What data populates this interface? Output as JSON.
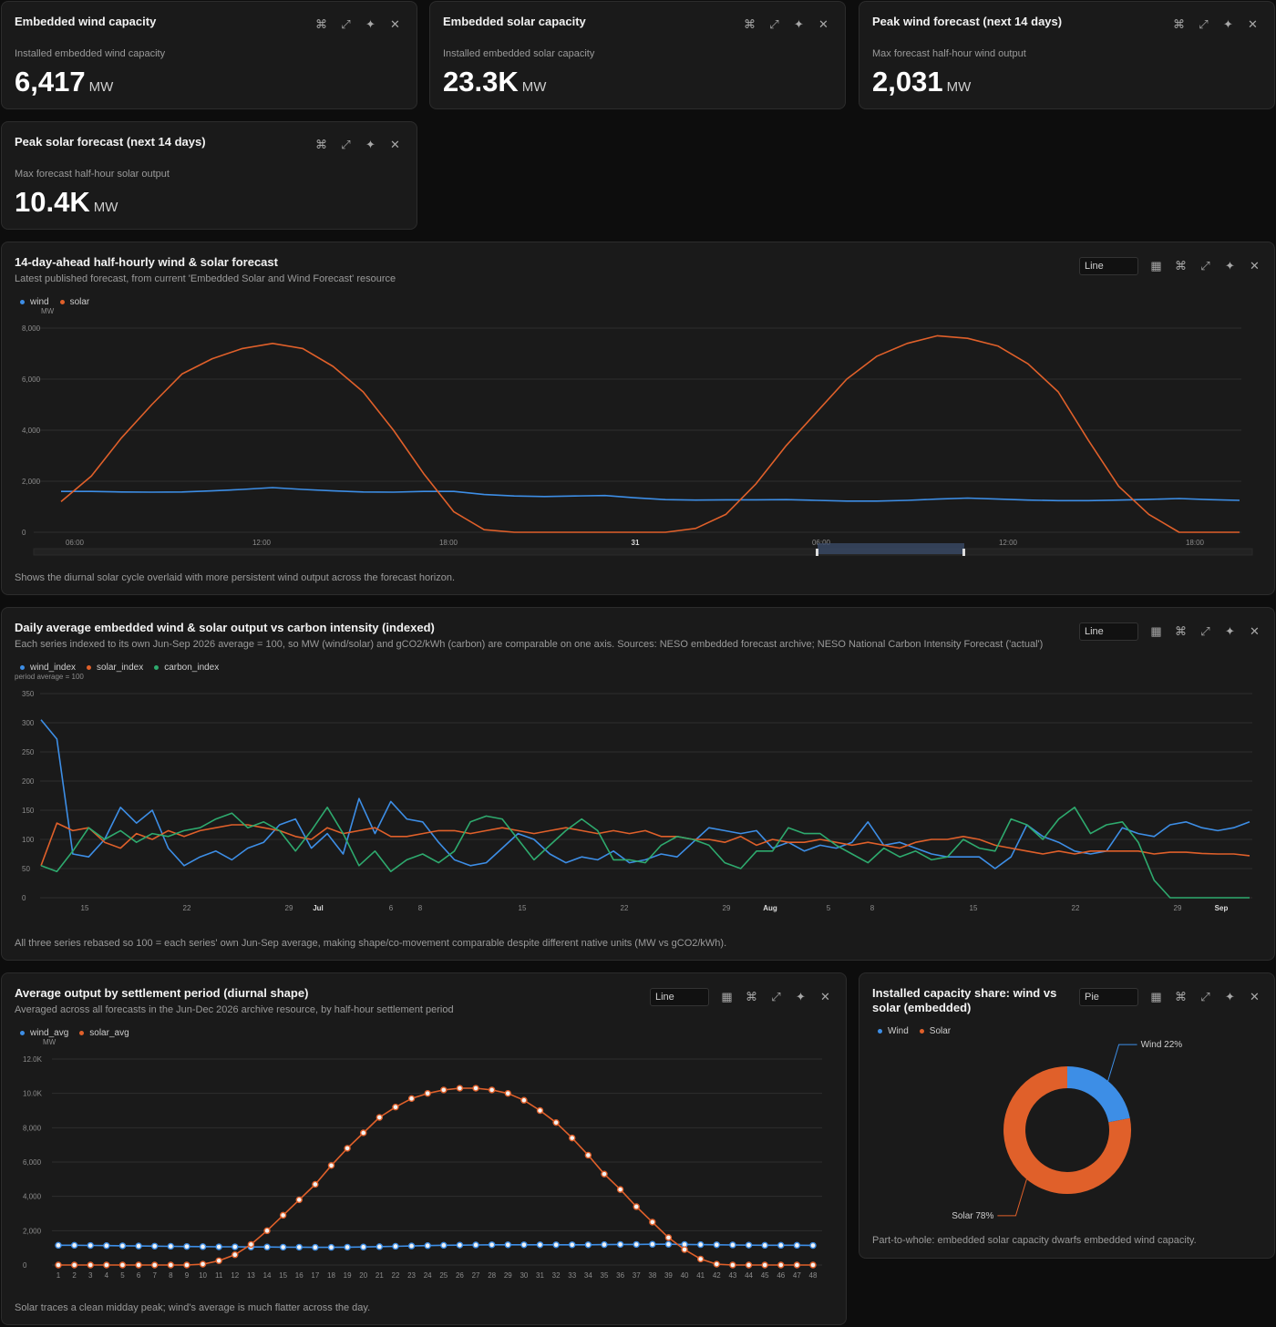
{
  "colors": {
    "wind": "#3d8ee6",
    "solar": "#e0602a",
    "carbon": "#2eaa6e",
    "grid": "#2e2e2e",
    "card": "#1a1a1a"
  },
  "icons": {
    "command": "command-icon",
    "expand": "expand-icon",
    "sparkle": "sparkle-icon",
    "close": "close-icon",
    "table": "table-icon"
  },
  "kpis": [
    {
      "title": "Embedded wind capacity",
      "label": "Installed embedded wind capacity",
      "value": "6,417",
      "unit": "MW"
    },
    {
      "title": "Embedded solar capacity",
      "label": "Installed embedded solar capacity",
      "value": "23.3K",
      "unit": "MW"
    },
    {
      "title": "Peak wind forecast (next 14 days)",
      "label": "Max forecast half-hour wind output",
      "value": "2,031",
      "unit": "MW"
    },
    {
      "title": "Peak solar forecast (next 14 days)",
      "label": "Max forecast half-hour solar output",
      "value": "10.4K",
      "unit": "MW"
    }
  ],
  "panels": {
    "forecast": {
      "title": "14-day-ahead half-hourly wind & solar forecast",
      "subtitle": "Latest published forecast, from current 'Embedded Solar and Wind Forecast' resource",
      "type_select": "Line",
      "footer": "Shows the diurnal solar cycle overlaid with more persistent wind output across the forecast horizon."
    },
    "daily": {
      "title": "Daily average embedded wind & solar output vs carbon intensity (indexed)",
      "subtitle": "Each series indexed to its own Jun-Sep 2026 average = 100, so MW (wind/solar) and gCO2/kWh (carbon) are comparable on one axis. Sources: NESO embedded forecast archive; NESO National Carbon Intensity Forecast ('actual')",
      "type_select": "Line",
      "footer": "All three series rebased so 100 = each series' own Jun-Sep average, making shape/co-movement comparable despite different native units (MW vs gCO2/kWh)."
    },
    "settlement": {
      "title": "Average output by settlement period (diurnal shape)",
      "subtitle": "Averaged across all forecasts in the Jun-Dec 2026 archive resource, by half-hour settlement period",
      "type_select": "Line",
      "footer": "Solar traces a clean midday peak; wind's average is much flatter across the day."
    },
    "share": {
      "title": "Installed capacity share: wind vs solar (embedded)",
      "type_select": "Pie",
      "footer": "Part-to-whole: embedded solar capacity dwarfs embedded wind capacity."
    }
  },
  "chart_data": [
    {
      "type": "line",
      "legend": [
        "wind",
        "solar"
      ],
      "ylabel": "MW",
      "ylim": [
        0,
        8000
      ],
      "yticks": [
        "0",
        "2,000",
        "4,000",
        "6,000",
        "8,000"
      ],
      "xticks": [
        "06:00",
        "12:00",
        "18:00",
        "31",
        "06:00",
        "12:00",
        "18:00"
      ],
      "x": [
        "05:30",
        "06:30",
        "07:30",
        "08:30",
        "09:30",
        "10:30",
        "11:30",
        "12:30",
        "13:30",
        "14:30",
        "15:30",
        "16:30",
        "17:30",
        "18:30",
        "19:30",
        "20:30",
        "21:30",
        "22:30",
        "23:30",
        "00:30",
        "01:30",
        "02:30",
        "03:30",
        "04:30",
        "05:30",
        "06:30",
        "07:30",
        "08:30",
        "09:30",
        "10:30",
        "11:30",
        "12:30",
        "13:30",
        "14:30",
        "15:30",
        "16:30",
        "17:30",
        "18:30",
        "19:30",
        "20:30"
      ],
      "series": [
        {
          "name": "wind",
          "values": [
            1600,
            1600,
            1580,
            1570,
            1580,
            1620,
            1680,
            1750,
            1680,
            1620,
            1580,
            1570,
            1600,
            1600,
            1480,
            1420,
            1400,
            1420,
            1440,
            1350,
            1280,
            1260,
            1270,
            1270,
            1280,
            1250,
            1220,
            1220,
            1250,
            1300,
            1340,
            1300,
            1260,
            1240,
            1240,
            1260,
            1290,
            1320,
            1280,
            1250
          ]
        },
        {
          "name": "solar",
          "values": [
            1200,
            2200,
            3700,
            5000,
            6200,
            6800,
            7200,
            7400,
            7200,
            6500,
            5500,
            4000,
            2300,
            800,
            100,
            0,
            0,
            0,
            0,
            0,
            0,
            150,
            700,
            1900,
            3400,
            4700,
            6000,
            6900,
            7400,
            7700,
            7600,
            7300,
            6600,
            5500,
            3600,
            1800,
            700,
            0,
            0,
            0
          ]
        }
      ]
    },
    {
      "type": "line",
      "legend": [
        "wind_index",
        "solar_index",
        "carbon_index"
      ],
      "ylabel": "period average = 100",
      "ylim": [
        0,
        350
      ],
      "yticks": [
        "0",
        "50",
        "100",
        "150",
        "200",
        "250",
        "300",
        "350"
      ],
      "xticks": [
        "15",
        "22",
        "29",
        "Jul",
        "6",
        "8",
        "15",
        "22",
        "29",
        "Aug",
        "5",
        "8",
        "15",
        "22",
        "29",
        "Sep"
      ],
      "x_start": "2026-06-08",
      "x_end": "2026-09-05",
      "series": [
        {
          "name": "wind_index",
          "values": [
            305,
            272,
            75,
            70,
            100,
            155,
            128,
            150,
            85,
            55,
            70,
            80,
            65,
            85,
            95,
            125,
            135,
            85,
            110,
            75,
            170,
            110,
            165,
            135,
            130,
            95,
            65,
            55,
            60,
            85,
            110,
            100,
            75,
            60,
            70,
            65,
            80,
            60,
            65,
            75,
            70,
            95,
            120,
            115,
            110,
            115,
            85,
            95,
            80,
            90,
            85,
            95,
            130,
            90,
            95,
            85,
            75,
            70,
            70,
            70,
            50,
            70,
            125,
            105,
            95,
            80,
            75,
            80,
            120,
            110,
            105,
            125,
            130,
            120,
            115,
            120,
            130
          ]
        },
        {
          "name": "solar_index",
          "values": [
            55,
            128,
            115,
            120,
            95,
            85,
            110,
            100,
            115,
            105,
            115,
            120,
            125,
            125,
            120,
            115,
            105,
            100,
            120,
            110,
            115,
            120,
            105,
            105,
            110,
            115,
            115,
            110,
            115,
            120,
            115,
            110,
            115,
            120,
            115,
            110,
            115,
            110,
            115,
            105,
            105,
            100,
            100,
            95,
            105,
            90,
            100,
            95,
            95,
            100,
            95,
            90,
            95,
            90,
            85,
            95,
            100,
            100,
            105,
            100,
            90,
            85,
            80,
            75,
            80,
            75,
            80,
            80,
            80,
            80,
            75,
            78,
            78,
            76,
            75,
            75,
            72
          ]
        },
        {
          "name": "carbon_index",
          "values": [
            55,
            45,
            80,
            120,
            100,
            115,
            95,
            110,
            105,
            115,
            120,
            135,
            145,
            120,
            130,
            115,
            80,
            115,
            155,
            110,
            55,
            80,
            45,
            65,
            75,
            60,
            80,
            130,
            140,
            135,
            100,
            65,
            90,
            115,
            135,
            115,
            65,
            65,
            60,
            90,
            105,
            100,
            90,
            60,
            50,
            80,
            80,
            120,
            110,
            110,
            90,
            75,
            60,
            85,
            70,
            80,
            65,
            70,
            100,
            85,
            80,
            135,
            125,
            100,
            135,
            155,
            110,
            125,
            130,
            95,
            30,
            0,
            0,
            0,
            0,
            0,
            0
          ]
        }
      ]
    },
    {
      "type": "line",
      "legend": [
        "wind_avg",
        "solar_avg"
      ],
      "ylabel": "MW",
      "ylim": [
        0,
        12000
      ],
      "yticks": [
        "0",
        "2,000",
        "4,000",
        "6,000",
        "8,000",
        "10.0K",
        "12.0K"
      ],
      "categories": [
        "1",
        "2",
        "3",
        "4",
        "5",
        "6",
        "7",
        "8",
        "9",
        "10",
        "11",
        "12",
        "13",
        "14",
        "15",
        "16",
        "17",
        "18",
        "19",
        "20",
        "21",
        "22",
        "23",
        "24",
        "25",
        "26",
        "27",
        "28",
        "29",
        "30",
        "31",
        "32",
        "33",
        "34",
        "35",
        "36",
        "37",
        "38",
        "39",
        "40",
        "41",
        "42",
        "43",
        "44",
        "45",
        "46",
        "47",
        "48"
      ],
      "series": [
        {
          "name": "wind_avg",
          "values": [
            1150,
            1150,
            1140,
            1130,
            1120,
            1110,
            1100,
            1090,
            1080,
            1070,
            1060,
            1060,
            1050,
            1050,
            1040,
            1040,
            1030,
            1030,
            1040,
            1050,
            1070,
            1090,
            1110,
            1130,
            1150,
            1160,
            1170,
            1180,
            1180,
            1180,
            1180,
            1180,
            1180,
            1180,
            1190,
            1200,
            1200,
            1210,
            1210,
            1200,
            1190,
            1180,
            1170,
            1160,
            1150,
            1150,
            1150,
            1140
          ]
        },
        {
          "name": "solar_avg",
          "values": [
            0,
            0,
            0,
            0,
            0,
            0,
            0,
            0,
            0,
            50,
            250,
            600,
            1200,
            2000,
            2900,
            3800,
            4700,
            5800,
            6800,
            7700,
            8600,
            9200,
            9700,
            10000,
            10200,
            10300,
            10300,
            10200,
            10000,
            9600,
            9000,
            8300,
            7400,
            6400,
            5300,
            4400,
            3400,
            2500,
            1600,
            900,
            350,
            50,
            0,
            0,
            0,
            0,
            0,
            0
          ]
        }
      ]
    },
    {
      "type": "pie",
      "legend": [
        "Wind",
        "Solar"
      ],
      "categories": [
        "Wind",
        "Solar"
      ],
      "values": [
        22,
        78
      ],
      "labels": [
        "Wind 22%",
        "Solar 78%"
      ]
    }
  ]
}
